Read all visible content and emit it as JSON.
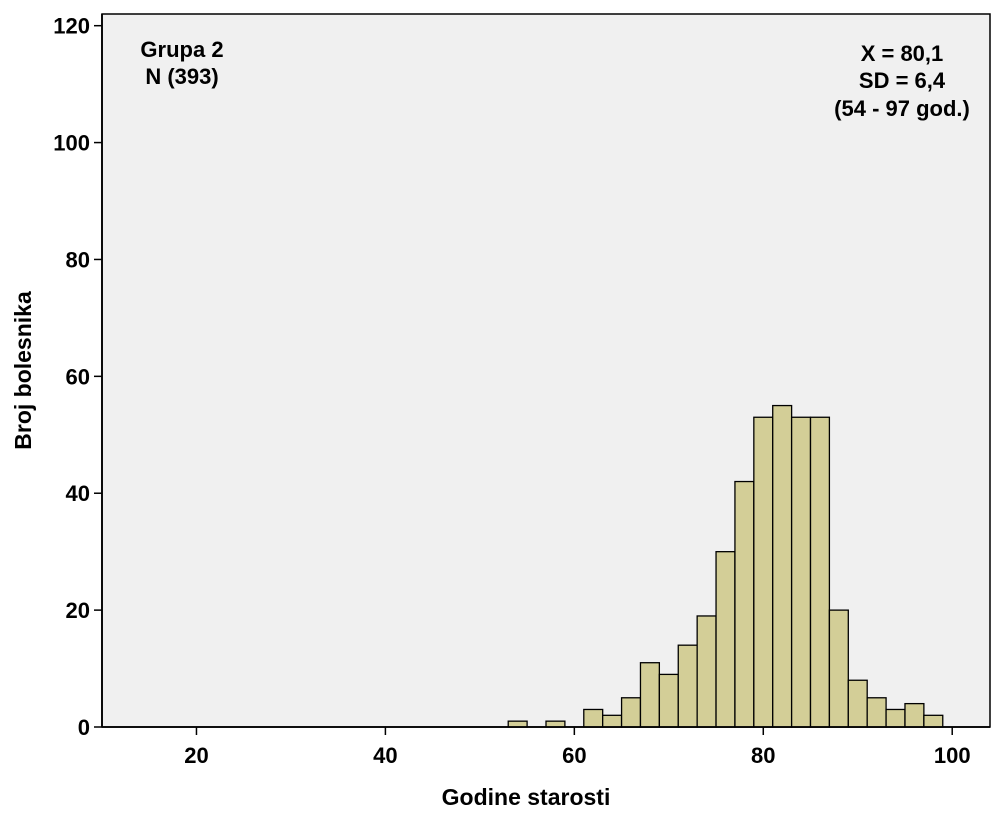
{
  "chart_data": {
    "type": "bar",
    "subtype": "histogram",
    "xlabel": "Godine starosti",
    "ylabel": "Broj bolesnika",
    "xlim": [
      10,
      104
    ],
    "ylim": [
      0,
      122
    ],
    "xticks": [
      20,
      40,
      60,
      80,
      100
    ],
    "yticks": [
      0,
      20,
      40,
      60,
      80,
      100,
      120
    ],
    "grid": false,
    "bin_width": 2,
    "bins": [
      {
        "start": 53,
        "end": 55,
        "count": 1
      },
      {
        "start": 55,
        "end": 57,
        "count": 0
      },
      {
        "start": 57,
        "end": 59,
        "count": 1
      },
      {
        "start": 59,
        "end": 61,
        "count": 0
      },
      {
        "start": 61,
        "end": 63,
        "count": 3
      },
      {
        "start": 63,
        "end": 65,
        "count": 2
      },
      {
        "start": 65,
        "end": 67,
        "count": 5
      },
      {
        "start": 67,
        "end": 69,
        "count": 11
      },
      {
        "start": 69,
        "end": 71,
        "count": 9
      },
      {
        "start": 71,
        "end": 73,
        "count": 14
      },
      {
        "start": 73,
        "end": 75,
        "count": 19
      },
      {
        "start": 75,
        "end": 77,
        "count": 30
      },
      {
        "start": 77,
        "end": 79,
        "count": 42
      },
      {
        "start": 79,
        "end": 81,
        "count": 53
      },
      {
        "start": 81,
        "end": 83,
        "count": 55
      },
      {
        "start": 83,
        "end": 85,
        "count": 53
      },
      {
        "start": 85,
        "end": 87,
        "count": 53
      },
      {
        "start": 87,
        "end": 89,
        "count": 20
      },
      {
        "start": 89,
        "end": 91,
        "count": 8
      },
      {
        "start": 91,
        "end": 93,
        "count": 5
      },
      {
        "start": 93,
        "end": 95,
        "count": 3
      },
      {
        "start": 95,
        "end": 97,
        "count": 4
      },
      {
        "start": 97,
        "end": 99,
        "count": 2
      }
    ],
    "annotations": {
      "left": [
        "Grupa 2",
        "N (393)"
      ],
      "right": [
        "X = 80,1",
        "SD = 6,4",
        "(54 - 97 god.)"
      ]
    },
    "colors": {
      "plot_background": "#f0f0f0",
      "bar_fill": "#d3ce97",
      "bar_stroke": "#000000"
    }
  }
}
